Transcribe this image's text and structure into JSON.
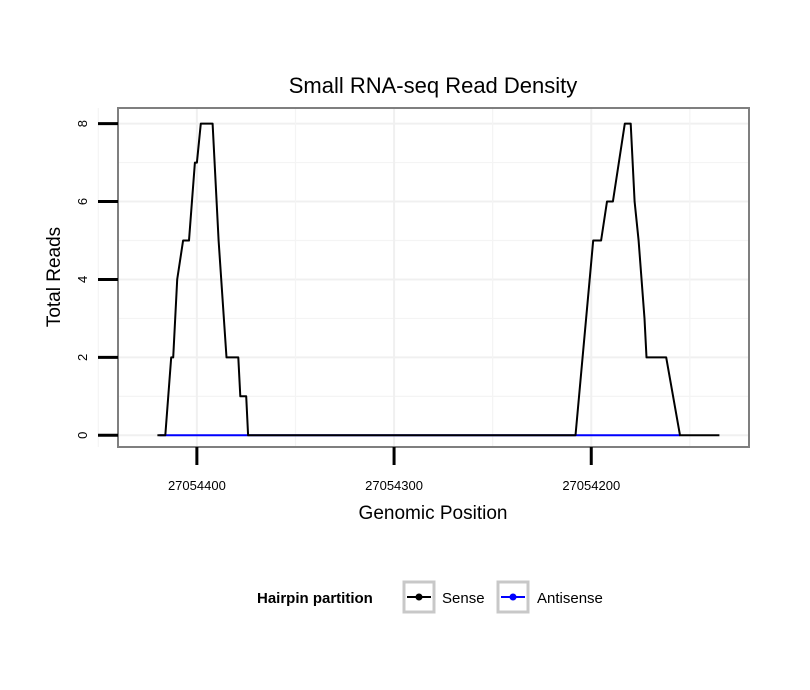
{
  "chart_data": {
    "type": "line",
    "title": "Small RNA-seq Read Density",
    "xlabel": "Genomic Position",
    "ylabel": "Total Reads",
    "xlim": [
      27054440,
      27054120
    ],
    "ylim": [
      -0.3,
      8.4
    ],
    "x_reversed": true,
    "x_ticks": [
      27054400,
      27054300,
      27054200
    ],
    "x_tick_labels": [
      "27054400",
      "27054300",
      "27054200"
    ],
    "y_ticks": [
      0,
      2,
      4,
      6,
      8
    ],
    "y_tick_labels": [
      "0",
      "2",
      "4",
      "6",
      "8"
    ],
    "grid": true,
    "legend": {
      "title": "Hairpin partition",
      "position": "bottom",
      "entries": [
        {
          "label": "Sense",
          "color": "#000000"
        },
        {
          "label": "Antisense",
          "color": "#0000ff"
        }
      ]
    },
    "series": [
      {
        "name": "Sense",
        "color": "#000000",
        "x": [
          27054420,
          27054418,
          27054416,
          27054413,
          27054412,
          27054410,
          27054407,
          27054406,
          27054404,
          27054401,
          27054400,
          27054398,
          27054397,
          27054394,
          27054392,
          27054389,
          27054385,
          27054379,
          27054378,
          27054375,
          27054374,
          27054373,
          27054365,
          27054355,
          27054300,
          27054245,
          27054234,
          27054228,
          27054221,
          27054211,
          27054208,
          27054199,
          27054195,
          27054192,
          27054189,
          27054183,
          27054180,
          27054178,
          27054176,
          27054173,
          27054172,
          27054164,
          27054162,
          27054155,
          27054135
        ],
        "values": [
          0,
          0,
          0,
          2,
          2,
          4,
          5,
          5,
          5,
          7,
          7,
          8,
          8,
          8,
          8,
          5,
          2,
          2,
          1,
          1,
          0,
          0,
          0,
          0,
          0,
          0,
          0,
          0,
          0,
          0,
          0,
          5,
          5,
          6,
          6,
          8,
          8,
          6,
          5,
          3,
          2,
          2,
          2,
          0,
          0
        ]
      },
      {
        "name": "Antisense",
        "color": "#0000ff",
        "x": [
          27054419,
          27054355,
          27054300,
          27054245,
          27054155
        ],
        "values": [
          0,
          0,
          0,
          0,
          0
        ]
      }
    ]
  }
}
